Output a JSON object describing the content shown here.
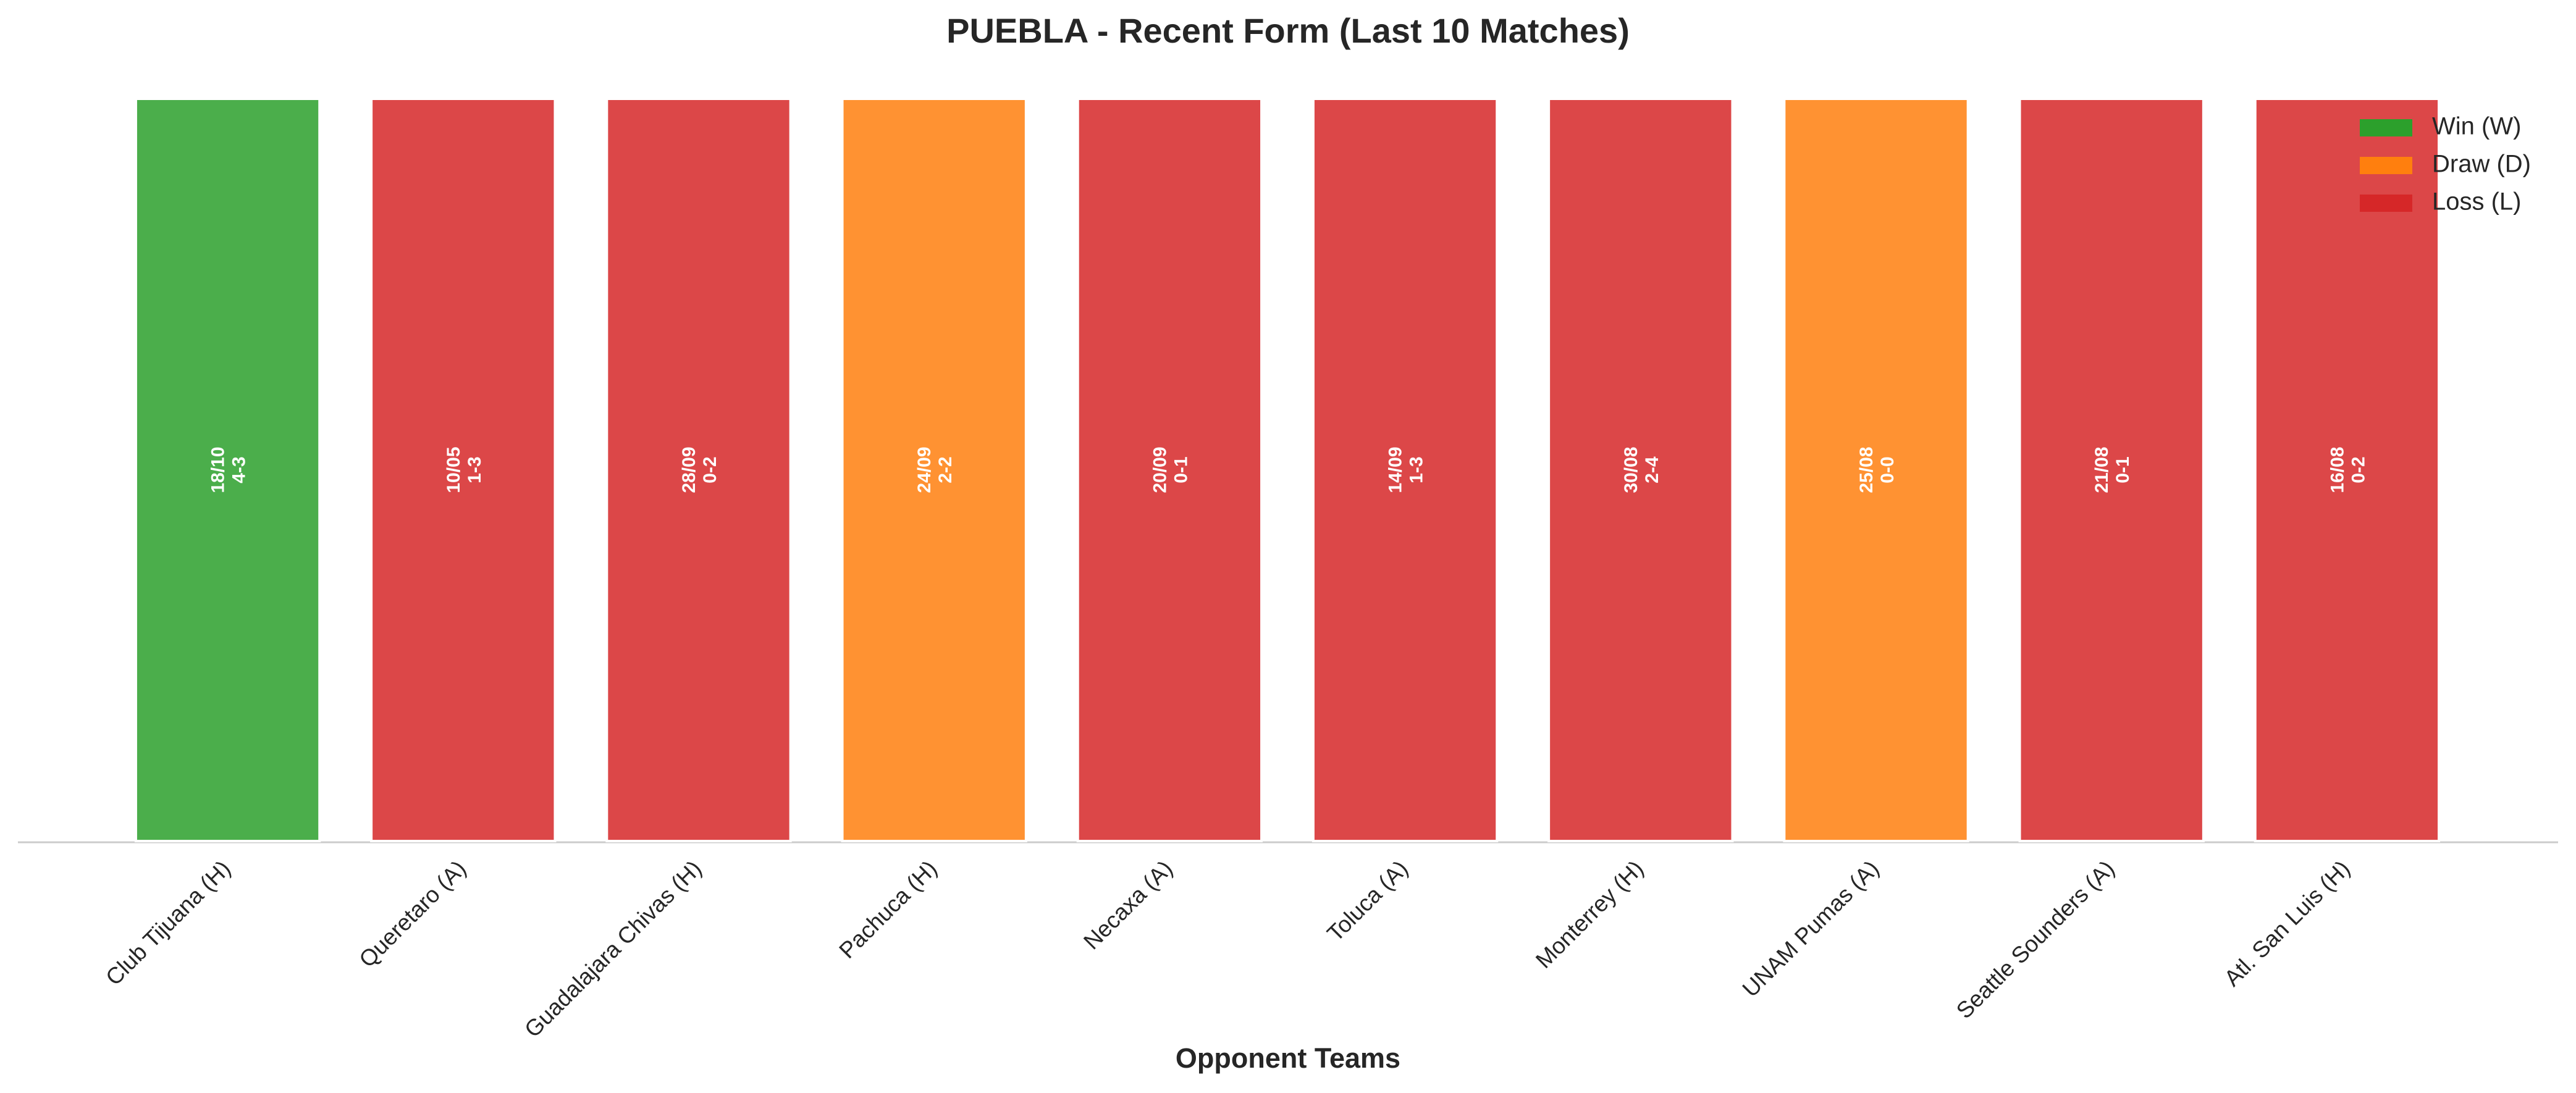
{
  "chart_data": {
    "type": "bar",
    "title": "PUEBLA - Recent Form (Last 10 Matches)",
    "xlabel": "Opponent Teams",
    "categories": [
      "Club Tijuana (H)",
      "Queretaro (A)",
      "Guadalajara Chivas (H)",
      "Pachuca (H)",
      "Necaxa (A)",
      "Toluca (A)",
      "Monterrey (H)",
      "UNAM Pumas (A)",
      "Seattle Sounders (A)",
      "Atl. San Luis (H)"
    ],
    "dates": [
      "18/10",
      "10/05",
      "28/09",
      "24/09",
      "20/09",
      "14/09",
      "30/08",
      "25/08",
      "21/08",
      "16/08"
    ],
    "scores": [
      "4-3",
      "1-3",
      "0-2",
      "2-2",
      "0-1",
      "1-3",
      "2-4",
      "0-0",
      "0-1",
      "0-2"
    ],
    "series": [
      {
        "name": "Win (W)",
        "color": "#2ca02c",
        "values": [
          1,
          null,
          null,
          null,
          null,
          null,
          null,
          null,
          null,
          null
        ]
      },
      {
        "name": "Draw (D)",
        "color": "#ff7f0e",
        "values": [
          null,
          null,
          null,
          1,
          null,
          null,
          null,
          1,
          null,
          null
        ]
      },
      {
        "name": "Loss (L)",
        "color": "#d62728",
        "values": [
          null,
          1,
          1,
          null,
          1,
          1,
          1,
          null,
          1,
          1
        ]
      }
    ],
    "ylim": [
      0,
      1
    ],
    "legend": "upper right"
  }
}
